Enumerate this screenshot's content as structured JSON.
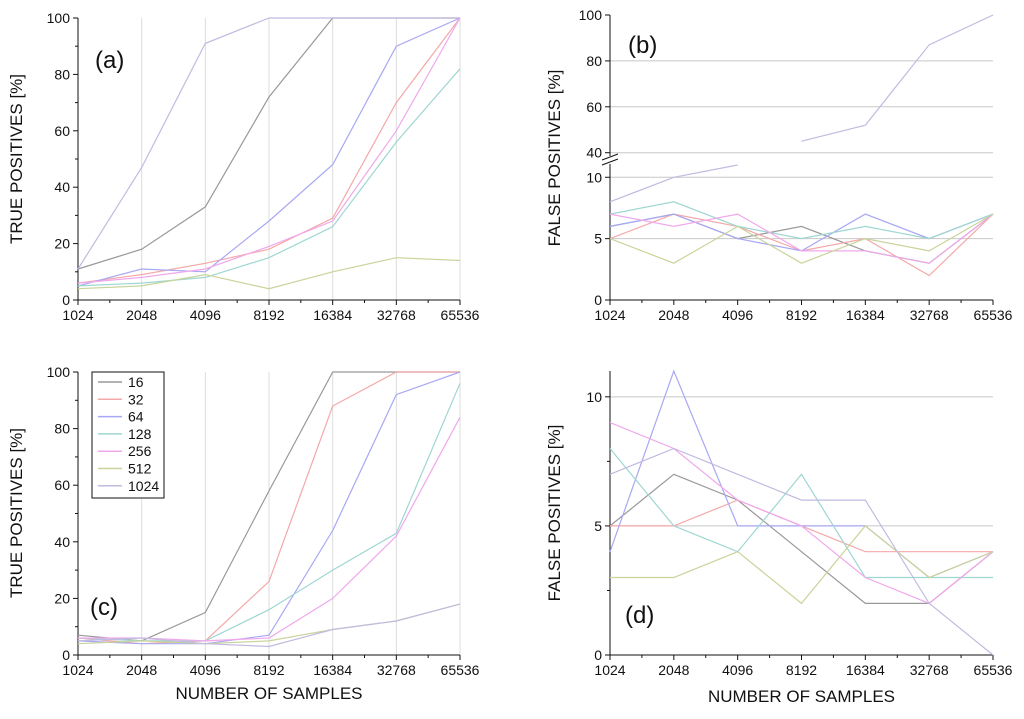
{
  "chart_data": [
    {
      "id": "a",
      "type": "line",
      "panel_label": "(a)",
      "ylabel": "TRUE POSITIVES [%]",
      "xlabel": "",
      "ylim": [
        0,
        100
      ],
      "x_ticks": [
        "1024",
        "2048",
        "4096",
        "8192",
        "16384",
        "32768",
        "65536"
      ],
      "y_ticks": [
        "0",
        "20",
        "40",
        "60",
        "80",
        "100"
      ],
      "series": [
        {
          "name": "16",
          "color": "#999999",
          "values": [
            11,
            18,
            33,
            72,
            100,
            100,
            100
          ]
        },
        {
          "name": "32",
          "color": "#f4a8a8",
          "values": [
            6,
            9,
            13,
            18,
            29,
            70,
            100
          ]
        },
        {
          "name": "64",
          "color": "#a8a8f4",
          "values": [
            5,
            11,
            10,
            28,
            48,
            90,
            100
          ]
        },
        {
          "name": "128",
          "color": "#9ed6d2",
          "values": [
            5,
            6,
            8,
            15,
            26,
            56,
            82
          ]
        },
        {
          "name": "256",
          "color": "#f0a8ec",
          "values": [
            6,
            8,
            11,
            19,
            28,
            60,
            100
          ]
        },
        {
          "name": "512",
          "color": "#c8d49a",
          "values": [
            4,
            5,
            9,
            4,
            10,
            15,
            14
          ]
        },
        {
          "name": "1024",
          "color": "#c2bae0",
          "values": [
            11,
            47,
            91,
            100,
            100,
            100,
            100
          ]
        }
      ]
    },
    {
      "id": "b",
      "type": "line",
      "panel_label": "(b)",
      "ylabel": "FALSE POSITIVES [%]",
      "xlabel": "",
      "ylim": [
        0,
        100
      ],
      "axis_break": [
        11,
        39
      ],
      "x_ticks": [
        "1024",
        "2048",
        "4096",
        "8192",
        "16384",
        "32768",
        "65536"
      ],
      "y_ticks": [
        "0",
        "5",
        "10",
        "40",
        "60",
        "80",
        "100"
      ],
      "series": [
        {
          "name": "16",
          "color": "#999999",
          "values": [
            6,
            7,
            5,
            6,
            4,
            3,
            7
          ]
        },
        {
          "name": "32",
          "color": "#f4a8a8",
          "values": [
            5,
            7,
            6,
            4,
            5,
            2,
            7
          ]
        },
        {
          "name": "64",
          "color": "#a8a8f4",
          "values": [
            6,
            7,
            5,
            4,
            7,
            5,
            7
          ]
        },
        {
          "name": "128",
          "color": "#9ed6d2",
          "values": [
            7,
            8,
            6,
            5,
            6,
            5,
            7
          ]
        },
        {
          "name": "256",
          "color": "#f0a8ec",
          "values": [
            7,
            6,
            7,
            4,
            4,
            3,
            7
          ]
        },
        {
          "name": "512",
          "color": "#c8d49a",
          "values": [
            5,
            3,
            6,
            3,
            5,
            4,
            7
          ]
        },
        {
          "name": "1024",
          "color": "#c2bae0",
          "values": [
            8,
            10,
            11,
            45,
            52,
            87,
            100
          ]
        }
      ]
    },
    {
      "id": "c",
      "type": "line",
      "panel_label": "(c)",
      "ylabel": "TRUE POSITIVES [%]",
      "xlabel": "NUMBER OF SAMPLES",
      "ylim": [
        0,
        100
      ],
      "x_ticks": [
        "1024",
        "2048",
        "4096",
        "8192",
        "16384",
        "32768",
        "65536"
      ],
      "y_ticks": [
        "0",
        "20",
        "40",
        "60",
        "80",
        "100"
      ],
      "legend": {
        "position": "top-left",
        "entries": [
          "16",
          "32",
          "64",
          "128",
          "256",
          "512",
          "1024"
        ]
      },
      "series": [
        {
          "name": "16",
          "color": "#999999",
          "values": [
            7,
            5,
            15,
            58,
            100,
            100,
            100
          ]
        },
        {
          "name": "32",
          "color": "#f4a8a8",
          "values": [
            6,
            4,
            5,
            26,
            88,
            100,
            100
          ]
        },
        {
          "name": "64",
          "color": "#a8a8f4",
          "values": [
            5,
            4,
            4,
            7,
            44,
            92,
            100
          ]
        },
        {
          "name": "128",
          "color": "#9ed6d2",
          "values": [
            6,
            5,
            5,
            16,
            30,
            43,
            96
          ]
        },
        {
          "name": "256",
          "color": "#f0a8ec",
          "values": [
            6,
            6,
            5,
            6,
            20,
            42,
            84
          ]
        },
        {
          "name": "512",
          "color": "#c8d49a",
          "values": [
            4,
            5,
            4,
            5,
            9,
            12,
            18
          ]
        },
        {
          "name": "1024",
          "color": "#c2bae0",
          "values": [
            5,
            6,
            4,
            3,
            9,
            12,
            18
          ]
        }
      ]
    },
    {
      "id": "d",
      "type": "line",
      "panel_label": "(d)",
      "ylabel": "FALSE POSITIVES [%]",
      "xlabel": "NUMBER OF SAMPLES",
      "ylim": [
        0,
        11
      ],
      "x_ticks": [
        "1024",
        "2048",
        "4096",
        "8192",
        "16384",
        "32768",
        "65536"
      ],
      "y_ticks": [
        "0",
        "5",
        "10"
      ],
      "series": [
        {
          "name": "16",
          "color": "#999999",
          "values": [
            5,
            7,
            6,
            4,
            2,
            2,
            4
          ]
        },
        {
          "name": "32",
          "color": "#f4a8a8",
          "values": [
            5,
            5,
            6,
            5,
            4,
            4,
            4
          ]
        },
        {
          "name": "64",
          "color": "#a8a8f4",
          "values": [
            4,
            11,
            5,
            5,
            5,
            3,
            4
          ]
        },
        {
          "name": "128",
          "color": "#9ed6d2",
          "values": [
            8,
            5,
            4,
            7,
            3,
            3,
            3
          ]
        },
        {
          "name": "256",
          "color": "#f0a8ec",
          "values": [
            9,
            8,
            6,
            5,
            3,
            2,
            4
          ]
        },
        {
          "name": "512",
          "color": "#c8d49a",
          "values": [
            3,
            3,
            4,
            2,
            5,
            3,
            4
          ]
        },
        {
          "name": "1024",
          "color": "#c2bae0",
          "values": [
            7,
            8,
            7,
            6,
            6,
            2,
            0
          ]
        }
      ]
    }
  ]
}
